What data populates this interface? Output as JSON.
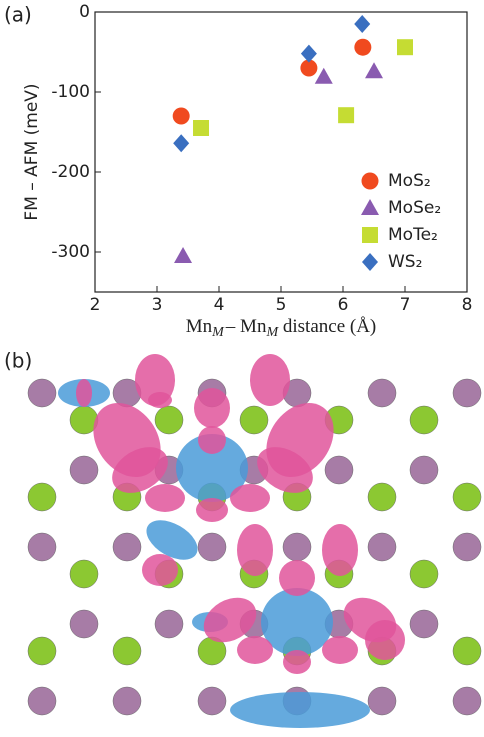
{
  "chart_data": {
    "type": "scatter",
    "panel_labels": [
      "(a)",
      "(b)"
    ],
    "y_label": "FM – AFM (meV)",
    "x_label": [
      "Mn",
      "M",
      "– Mn",
      "M",
      " distance (Å)"
    ],
    "xlim": [
      2,
      8
    ],
    "xticks": [
      2,
      3,
      4,
      5,
      6,
      7,
      8
    ],
    "ylim": [
      -350,
      0
    ],
    "yticks": [
      -300,
      -200,
      -100,
      0
    ],
    "legend": "lower right",
    "series": [
      {
        "name": "MoS₂",
        "color": "#f04a1f",
        "marker": "circle",
        "x": [
          3.39,
          5.45,
          6.32
        ],
        "values": [
          -130,
          -70,
          -44
        ]
      },
      {
        "name": "MoSe₂",
        "color": "#8a5bb0",
        "marker": "triangle",
        "x": [
          3.42,
          5.69,
          6.5
        ],
        "values": [
          -305,
          -81,
          -74
        ]
      },
      {
        "name": "MoTe₂",
        "color": "#c5dc33",
        "marker": "square",
        "x": [
          3.71,
          6.05,
          7.0
        ],
        "values": [
          -145,
          -129,
          -44
        ]
      },
      {
        "name": "WS₂",
        "color": "#3a6fc0",
        "marker": "diamond",
        "x": [
          3.39,
          5.45,
          6.31
        ],
        "values": [
          -164,
          -52,
          -15
        ]
      }
    ]
  }
}
